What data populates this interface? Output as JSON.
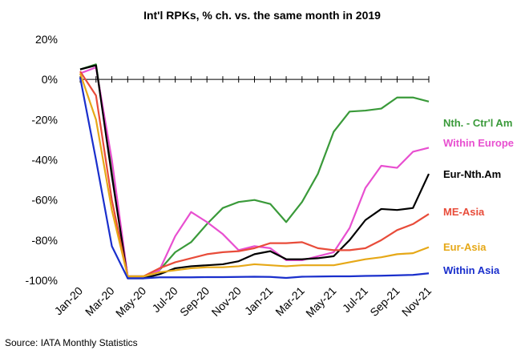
{
  "chart_data": {
    "type": "line",
    "title": "Int'l RPKs, % ch. vs. the same month in 2019",
    "source": "Source: IATA Monthly Statistics",
    "categories": [
      "Jan-20",
      null,
      "Mar-20",
      null,
      "May-20",
      null,
      "Jul-20",
      null,
      "Sep-20",
      null,
      "Nov-20",
      null,
      "Jan-21",
      null,
      "Mar-21",
      null,
      "May-21",
      null,
      "Jul-21",
      null,
      "Sep-21",
      null,
      "Nov-21"
    ],
    "ylim": [
      -100,
      20
    ],
    "yticks": [
      {
        "value": 20,
        "label": "20%"
      },
      {
        "value": 0,
        "label": "0%"
      },
      {
        "value": -20,
        "label": "-20%"
      },
      {
        "value": -40,
        "label": "-40%"
      },
      {
        "value": -60,
        "label": "-60%"
      },
      {
        "value": -80,
        "label": "-80%"
      },
      {
        "value": -100,
        "label": "-100%"
      }
    ],
    "series": [
      {
        "name": "Nth. - Ctr'l Am",
        "color": "#3a9a3a",
        "values": [
          5,
          7.5,
          -45,
          -98,
          -98,
          -95,
          -86,
          -81,
          -72,
          -64,
          -61,
          -60,
          -62,
          -71,
          -61,
          -47,
          -26,
          -16,
          -15.5,
          -14.5,
          -9,
          -9,
          -11
        ]
      },
      {
        "name": "Within Europe",
        "color": "#e84fd0",
        "values": [
          3,
          6,
          -40,
          -98,
          -98,
          -95,
          -78,
          -66,
          -71,
          -77,
          -85,
          -83,
          -84,
          -90,
          -90,
          -88,
          -86,
          -74,
          -54,
          -43,
          -44,
          -36,
          -34
        ]
      },
      {
        "name": "Eur-Nth.Am",
        "color": "#000000",
        "values": [
          5,
          7,
          -48,
          -99,
          -99,
          -97,
          -94,
          -93,
          -92.5,
          -92,
          -90.5,
          -87,
          -85.5,
          -89.5,
          -89.5,
          -89,
          -88,
          -80,
          -70,
          -64.5,
          -65,
          -64,
          -47
        ]
      },
      {
        "name": "ME-Asia",
        "color": "#e84c3a",
        "values": [
          4,
          -8,
          -60,
          -98,
          -98,
          -94,
          -91,
          -89,
          -87,
          -86,
          -85.5,
          -84,
          -81.5,
          -81.5,
          -81,
          -84,
          -85,
          -85,
          -84,
          -80,
          -75,
          -72,
          -67
        ]
      },
      {
        "name": "Eur-Asia",
        "color": "#e6a817",
        "values": [
          3,
          -20,
          -65,
          -98,
          -98,
          -96,
          -95,
          -94,
          -93.5,
          -93.5,
          -93,
          -92,
          -92.5,
          -93,
          -92.5,
          -92.5,
          -92.5,
          -91,
          -89.5,
          -88.5,
          -87,
          -86.5,
          -83.5
        ]
      },
      {
        "name": "Within Asia",
        "color": "#1a2fcc",
        "values": [
          1,
          -40,
          -83,
          -99,
          -99,
          -98.5,
          -98.5,
          -98.5,
          -98.4,
          -98.4,
          -98.3,
          -98.2,
          -98.3,
          -98.8,
          -98.2,
          -98.1,
          -98,
          -98,
          -97.8,
          -97.7,
          -97.5,
          -97.3,
          -96.5
        ]
      }
    ]
  }
}
